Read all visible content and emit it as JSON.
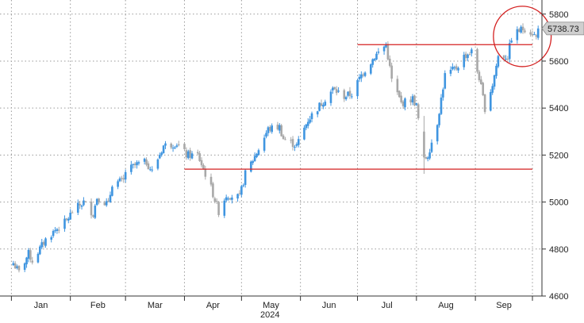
{
  "chart_data": {
    "type": "candlestick",
    "title": "",
    "xlabel": "2024",
    "ylabel": "",
    "ylim": [
      4600,
      5860
    ],
    "y_ticks": [
      4600,
      4800,
      5000,
      5200,
      5400,
      5600,
      5800
    ],
    "grid": true,
    "x_months": [
      "Jan",
      "Feb",
      "Mar",
      "Apr",
      "May",
      "Jun",
      "Jul",
      "Aug",
      "Sep"
    ],
    "year_label": "2024",
    "last_price": 5738.73,
    "last_price_label": "5738.73",
    "colors": {
      "up": "#3f95e0",
      "down": "#a8a8a8",
      "line": "#d42020",
      "grid": "#9a9a9a"
    },
    "support_line": {
      "from": "2024-04-01",
      "to": "2024-10-01",
      "value": 5140
    },
    "resistance_line": {
      "from": "2024-07-01",
      "to": "2024-10-01",
      "value": 5670
    },
    "highlight_circle": {
      "from": "2024-09-18",
      "to": "2024-09-30",
      "low": 5590,
      "high": 5820
    },
    "anchors": [
      [
        "2024-01-02",
        4740
      ],
      [
        "2024-01-05",
        4700
      ],
      [
        "2024-01-10",
        4780
      ],
      [
        "2024-01-12",
        4750
      ],
      [
        "2024-01-19",
        4840
      ],
      [
        "2024-01-24",
        4880
      ],
      [
        "2024-01-30",
        4920
      ],
      [
        "2024-02-02",
        4960
      ],
      [
        "2024-02-08",
        5000
      ],
      [
        "2024-02-13",
        4950
      ],
      [
        "2024-02-15",
        5020
      ],
      [
        "2024-02-21",
        4990
      ],
      [
        "2024-02-23",
        5080
      ],
      [
        "2024-02-29",
        5090
      ],
      [
        "2024-03-01",
        5130
      ],
      [
        "2024-03-07",
        5160
      ],
      [
        "2024-03-12",
        5170
      ],
      [
        "2024-03-15",
        5130
      ],
      [
        "2024-03-21",
        5240
      ],
      [
        "2024-03-28",
        5250
      ],
      [
        "2024-04-02",
        5200
      ],
      [
        "2024-04-08",
        5200
      ],
      [
        "2024-04-12",
        5120
      ],
      [
        "2024-04-15",
        5060
      ],
      [
        "2024-04-19",
        4960
      ],
      [
        "2024-04-23",
        5030
      ],
      [
        "2024-04-30",
        5020
      ],
      [
        "2024-05-03",
        5120
      ],
      [
        "2024-05-09",
        5210
      ],
      [
        "2024-05-15",
        5310
      ],
      [
        "2024-05-21",
        5320
      ],
      [
        "2024-05-23",
        5270
      ],
      [
        "2024-05-30",
        5240
      ],
      [
        "2024-06-05",
        5350
      ],
      [
        "2024-06-12",
        5420
      ],
      [
        "2024-06-18",
        5480
      ],
      [
        "2024-06-24",
        5450
      ],
      [
        "2024-06-28",
        5460
      ],
      [
        "2024-07-03",
        5540
      ],
      [
        "2024-07-10",
        5620
      ],
      [
        "2024-07-16",
        5670
      ],
      [
        "2024-07-19",
        5520
      ],
      [
        "2024-07-24",
        5420
      ],
      [
        "2024-07-30",
        5440
      ],
      [
        "2024-08-01",
        5410
      ],
      [
        "2024-08-05",
        5180
      ],
      [
        "2024-08-07",
        5200
      ],
      [
        "2024-08-12",
        5340
      ],
      [
        "2024-08-16",
        5540
      ],
      [
        "2024-08-22",
        5570
      ],
      [
        "2024-08-26",
        5620
      ],
      [
        "2024-08-30",
        5640
      ],
      [
        "2024-09-03",
        5530
      ],
      [
        "2024-09-06",
        5400
      ],
      [
        "2024-09-10",
        5500
      ],
      [
        "2024-09-13",
        5620
      ],
      [
        "2024-09-18",
        5620
      ],
      [
        "2024-09-20",
        5700
      ],
      [
        "2024-09-24",
        5730
      ],
      [
        "2024-09-27",
        5740
      ],
      [
        "2024-10-01",
        5720
      ],
      [
        "2024-10-03",
        5700
      ],
      [
        "2024-10-04",
        5738
      ]
    ]
  }
}
